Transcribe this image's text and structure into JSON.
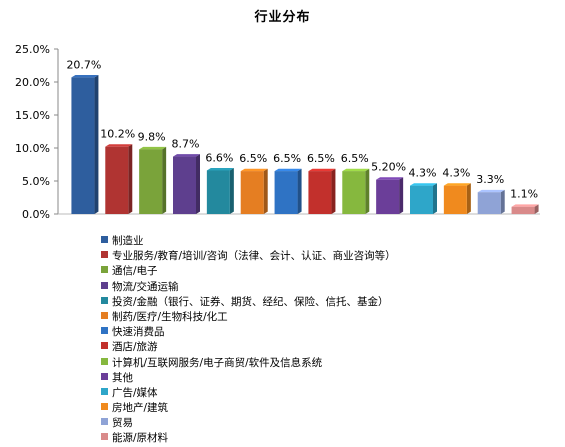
{
  "chart_data": {
    "type": "bar",
    "title": "行业分布",
    "xlabel": "",
    "ylabel": "",
    "ylim": [
      0,
      25
    ],
    "yticks": [
      "0.0%",
      "5.0%",
      "10.0%",
      "15.0%",
      "20.0%",
      "25.0%"
    ],
    "legend_position": "bottom-left",
    "grid": false,
    "categories": [
      "制造业",
      "专业服务/教育/培训/咨询（法律、会计、认证、商业咨询等）",
      "通信/电子",
      "物流/交通运输",
      "投资/金融（银行、证券、期货、经纪、保险、信托、基金）",
      "制药/医疗/生物科技/化工",
      "快速消费品",
      "酒店/旅游",
      "计算机/互联网服务/电子商贸/软件及信息系统",
      "其他",
      "广告/媒体",
      "房地产/建筑",
      "贸易",
      "能源/原材料"
    ],
    "values": [
      20.7,
      10.2,
      9.8,
      8.7,
      6.6,
      6.5,
      6.5,
      6.5,
      6.5,
      5.2,
      4.3,
      4.3,
      3.3,
      1.1
    ],
    "data_labels": [
      "20.7%",
      "10.2%",
      "9.8%",
      "8.7%",
      "6.6%",
      "6.5%",
      "6.5%",
      "6.5%",
      "6.5%",
      "5.20%",
      "4.3%",
      "4.3%",
      "3.3%",
      "1.1%"
    ],
    "colors": [
      "#2E5E9E",
      "#B03432",
      "#7AA33A",
      "#5E3F8E",
      "#23899E",
      "#E57E22",
      "#2F73C4",
      "#C2302C",
      "#86B83E",
      "#6B3E99",
      "#2EA6C9",
      "#F08A1E",
      "#8FA3D6",
      "#D98A8A"
    ]
  }
}
